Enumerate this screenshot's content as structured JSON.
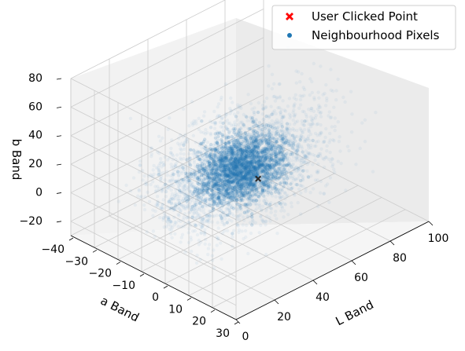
{
  "chart_data": {
    "type": "scatter",
    "projection": "3d",
    "title": "",
    "xlabel": "L Band",
    "ylabel": "a Band",
    "zlabel": "b Band",
    "xlim": [
      0,
      100
    ],
    "ylim": [
      -40,
      30
    ],
    "zlim": [
      -30,
      80
    ],
    "xticks": [
      "0",
      "20",
      "40",
      "60",
      "80",
      "100"
    ],
    "yticks": [
      "−40",
      "−30",
      "−20",
      "−10",
      "0",
      "10",
      "20",
      "30"
    ],
    "zticks": [
      "−20",
      "0",
      "20",
      "40",
      "60",
      "80"
    ],
    "grid": true,
    "legend_position": "top-right",
    "series": [
      {
        "name": "User Clicked Point",
        "marker": "X",
        "color": "#ff0000",
        "points": [
          {
            "L": 47,
            "a": 1,
            "b": 12
          }
        ]
      },
      {
        "name": "Neighbourhood Pixels",
        "marker": "o",
        "color": "#1f77b4",
        "distribution": {
          "L_range": [
            10,
            95
          ],
          "a_range": [
            -30,
            20
          ],
          "b_range": [
            -20,
            60
          ],
          "center": {
            "L": 45,
            "a": -5,
            "b": 15
          }
        }
      }
    ]
  },
  "colors": {
    "pane_left": "#f2f2f2",
    "pane_right": "#ebebeb",
    "pane_floor": "#f5f5f5",
    "grid": "#cccccc",
    "scatter": "#1f77b4",
    "clicked": "#ff0000"
  }
}
